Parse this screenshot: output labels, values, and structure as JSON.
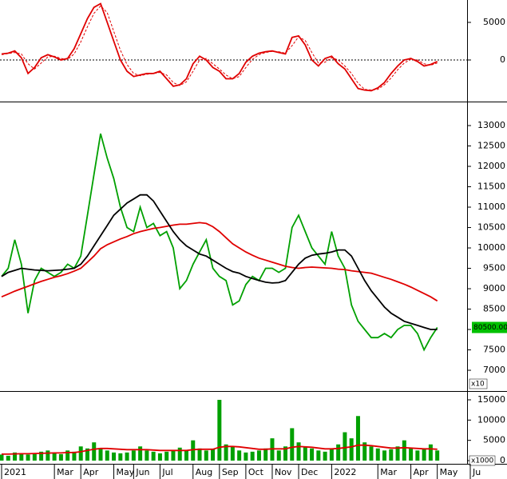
{
  "chart_data": [
    {
      "type": "line",
      "ylim": [
        -5320,
        7980
      ],
      "yticks": [
        0,
        5000
      ],
      "zero_line": true,
      "series": [
        {
          "name": null,
          "color": "#e00000",
          "style": "solid",
          "values": [
            800,
            900,
            1200,
            300,
            -1800,
            -1000,
            300,
            700,
            400,
            0,
            200,
            1500,
            3500,
            5500,
            7000,
            7500,
            5000,
            2500,
            0,
            -1500,
            -2200,
            -2000,
            -1800,
            -1800,
            -1500,
            -2500,
            -3500,
            -3300,
            -2500,
            -500,
            500,
            0,
            -1000,
            -1500,
            -2500,
            -2500,
            -1800,
            -300,
            500,
            900,
            1100,
            1200,
            1000,
            800,
            3000,
            3200,
            2000,
            0,
            -800,
            200,
            500,
            -500,
            -1200,
            -2500,
            -3800,
            -4000,
            -4100,
            -3700,
            -3000,
            -1800,
            -800,
            0,
            200,
            -200,
            -800,
            -600,
            -200,
            null,
            null,
            null,
            null,
            null
          ]
        },
        {
          "name": null,
          "color": "#e00000",
          "style": "dashed",
          "values": [
            700,
            850,
            1000,
            800,
            -500,
            -1200,
            -400,
            400,
            500,
            200,
            100,
            800,
            2400,
            4400,
            6200,
            7200,
            6300,
            3800,
            1300,
            -600,
            -1800,
            -2100,
            -1900,
            -1800,
            -1650,
            -2000,
            -3000,
            -3400,
            -2900,
            -1500,
            0,
            200,
            -500,
            -1200,
            -2000,
            -2500,
            -2200,
            -1000,
            100,
            700,
            1000,
            1150,
            1100,
            900,
            1900,
            3100,
            2600,
            1000,
            -400,
            -300,
            300,
            0,
            -800,
            -1800,
            -3100,
            -3900,
            -4000,
            -3900,
            -3300,
            -2400,
            -1300,
            -400,
            100,
            0,
            -500,
            -700,
            -400,
            null,
            null,
            null,
            null,
            null
          ]
        }
      ]
    },
    {
      "type": "line",
      "ylim": [
        6530,
        13530
      ],
      "yticks": [
        7000,
        7500,
        8000,
        8500,
        9000,
        9500,
        10000,
        10500,
        11000,
        11500,
        12000,
        12500,
        13000
      ],
      "scale_label": "x10",
      "last_price_label": "80500.00",
      "series": [
        {
          "name": null,
          "color": "#00a000",
          "style": "solid",
          "values": [
            9300,
            9500,
            10200,
            9600,
            8400,
            9200,
            9500,
            9400,
            9300,
            9400,
            9600,
            9500,
            9800,
            10800,
            11800,
            12800,
            12200,
            11700,
            11000,
            10500,
            10400,
            11000,
            10500,
            10600,
            10300,
            10400,
            10000,
            9000,
            9200,
            9600,
            9900,
            10200,
            9500,
            9300,
            9200,
            8600,
            8700,
            9100,
            9300,
            9200,
            9500,
            9500,
            9400,
            9500,
            10500,
            10800,
            10400,
            10000,
            9800,
            9600,
            10400,
            9800,
            9500,
            8600,
            8200,
            8000,
            7800,
            7800,
            7900,
            7800,
            8000,
            8100,
            8100,
            7900,
            7500,
            7800,
            8050,
            null,
            null,
            null,
            null,
            null
          ]
        },
        {
          "name": null,
          "color": "#e00000",
          "style": "solid",
          "values": [
            8800,
            8870,
            8940,
            9000,
            9060,
            9120,
            9180,
            9230,
            9280,
            9320,
            9370,
            9430,
            9500,
            9650,
            9800,
            9980,
            10080,
            10150,
            10220,
            10280,
            10350,
            10400,
            10440,
            10480,
            10500,
            10530,
            10560,
            10580,
            10580,
            10600,
            10620,
            10600,
            10520,
            10400,
            10250,
            10100,
            10000,
            9900,
            9820,
            9750,
            9700,
            9650,
            9600,
            9550,
            9520,
            9500,
            9520,
            9530,
            9520,
            9510,
            9500,
            9480,
            9470,
            9440,
            9420,
            9400,
            9380,
            9330,
            9280,
            9230,
            9170,
            9110,
            9040,
            8960,
            8880,
            8800,
            8700,
            null,
            null,
            null,
            null,
            null
          ]
        },
        {
          "name": null,
          "color": "#000000",
          "style": "solid",
          "values": [
            9300,
            9400,
            9450,
            9500,
            9480,
            9460,
            9450,
            9440,
            9450,
            9460,
            9480,
            9500,
            9600,
            9800,
            10050,
            10300,
            10550,
            10800,
            10950,
            11100,
            11200,
            11300,
            11300,
            11150,
            10900,
            10650,
            10400,
            10200,
            10050,
            9950,
            9850,
            9800,
            9700,
            9600,
            9500,
            9420,
            9380,
            9300,
            9250,
            9200,
            9160,
            9140,
            9150,
            9200,
            9400,
            9600,
            9750,
            9820,
            9850,
            9870,
            9900,
            9950,
            9950,
            9800,
            9500,
            9200,
            8950,
            8750,
            8550,
            8400,
            8300,
            8200,
            8150,
            8100,
            8050,
            8000,
            8000,
            null,
            null,
            null,
            null,
            null
          ]
        }
      ]
    },
    {
      "type": "bar",
      "ylim": [
        -790,
        16580
      ],
      "yticks": [
        0,
        5000,
        10000,
        15000
      ],
      "scale_label": "x1000",
      "categories": [
        "2021",
        null,
        null,
        null,
        null,
        null,
        null,
        null,
        "Mar",
        null,
        null,
        null,
        "Apr",
        null,
        null,
        null,
        null,
        "May",
        null,
        null,
        "Jun",
        null,
        null,
        null,
        "Jul",
        null,
        null,
        null,
        null,
        "Aug",
        null,
        null,
        null,
        "Sep",
        null,
        null,
        null,
        "Oct",
        null,
        null,
        null,
        "Nov",
        null,
        null,
        null,
        "Dec",
        null,
        null,
        null,
        null,
        "2022",
        null,
        null,
        null,
        null,
        null,
        null,
        "Mar",
        null,
        null,
        null,
        null,
        "Apr",
        null,
        null,
        null,
        "May",
        null,
        null,
        null,
        null,
        "Ju"
      ],
      "series": [
        {
          "name": null,
          "color": "#00a000",
          "style": "bar",
          "values": [
            1500,
            1200,
            2000,
            1800,
            1500,
            1800,
            2200,
            2500,
            1800,
            1600,
            2500,
            2200,
            3500,
            3000,
            4500,
            3000,
            2500,
            2000,
            1800,
            2000,
            2500,
            3500,
            2500,
            2200,
            1800,
            2200,
            2500,
            3200,
            2500,
            5000,
            3000,
            2500,
            2800,
            15000,
            4000,
            3500,
            2500,
            2000,
            2200,
            2500,
            3000,
            5500,
            2500,
            3500,
            8000,
            4500,
            3500,
            3000,
            2500,
            2200,
            3000,
            4000,
            7000,
            5500,
            11000,
            4500,
            3500,
            3000,
            2500,
            2800,
            3500,
            5000,
            3000,
            2500,
            3000,
            4000,
            2500,
            null,
            null,
            null,
            null,
            null
          ]
        },
        {
          "name": null,
          "color": "#e00000",
          "style": "solid",
          "values": [
            1600,
            1600,
            1650,
            1700,
            1700,
            1750,
            1800,
            1850,
            1900,
            1900,
            2000,
            2000,
            2200,
            2500,
            2800,
            3000,
            3000,
            2900,
            2800,
            2700,
            2700,
            2700,
            2700,
            2600,
            2500,
            2500,
            2500,
            2500,
            2500,
            2700,
            2800,
            2800,
            2800,
            3300,
            3500,
            3500,
            3400,
            3200,
            3000,
            2800,
            2800,
            2900,
            2900,
            2900,
            3300,
            3500,
            3400,
            3300,
            3100,
            2900,
            2900,
            3000,
            3200,
            3400,
            3800,
            3800,
            3700,
            3500,
            3300,
            3100,
            3100,
            3200,
            3100,
            3000,
            2900,
            2900,
            2800,
            null,
            null,
            null,
            null,
            null
          ]
        }
      ]
    }
  ]
}
